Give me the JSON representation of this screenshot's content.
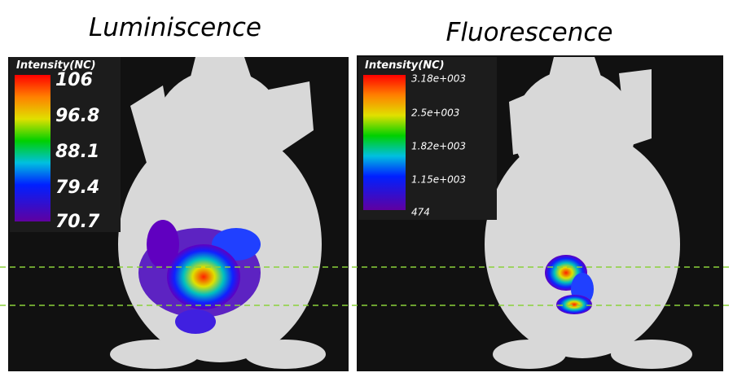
{
  "panels": [
    {
      "title": "Luminiscence",
      "colorbar": {
        "title": "Intensity(NC)",
        "labels": [
          "106",
          "96.8",
          "88.1",
          "79.4",
          "70.7"
        ]
      }
    },
    {
      "title": "Fluorescence",
      "colorbar": {
        "title": "Intensity(NC)",
        "labels": [
          "3.18e+003",
          "2.5e+003",
          "1.82e+003",
          "1.15e+003",
          "474"
        ]
      }
    }
  ]
}
